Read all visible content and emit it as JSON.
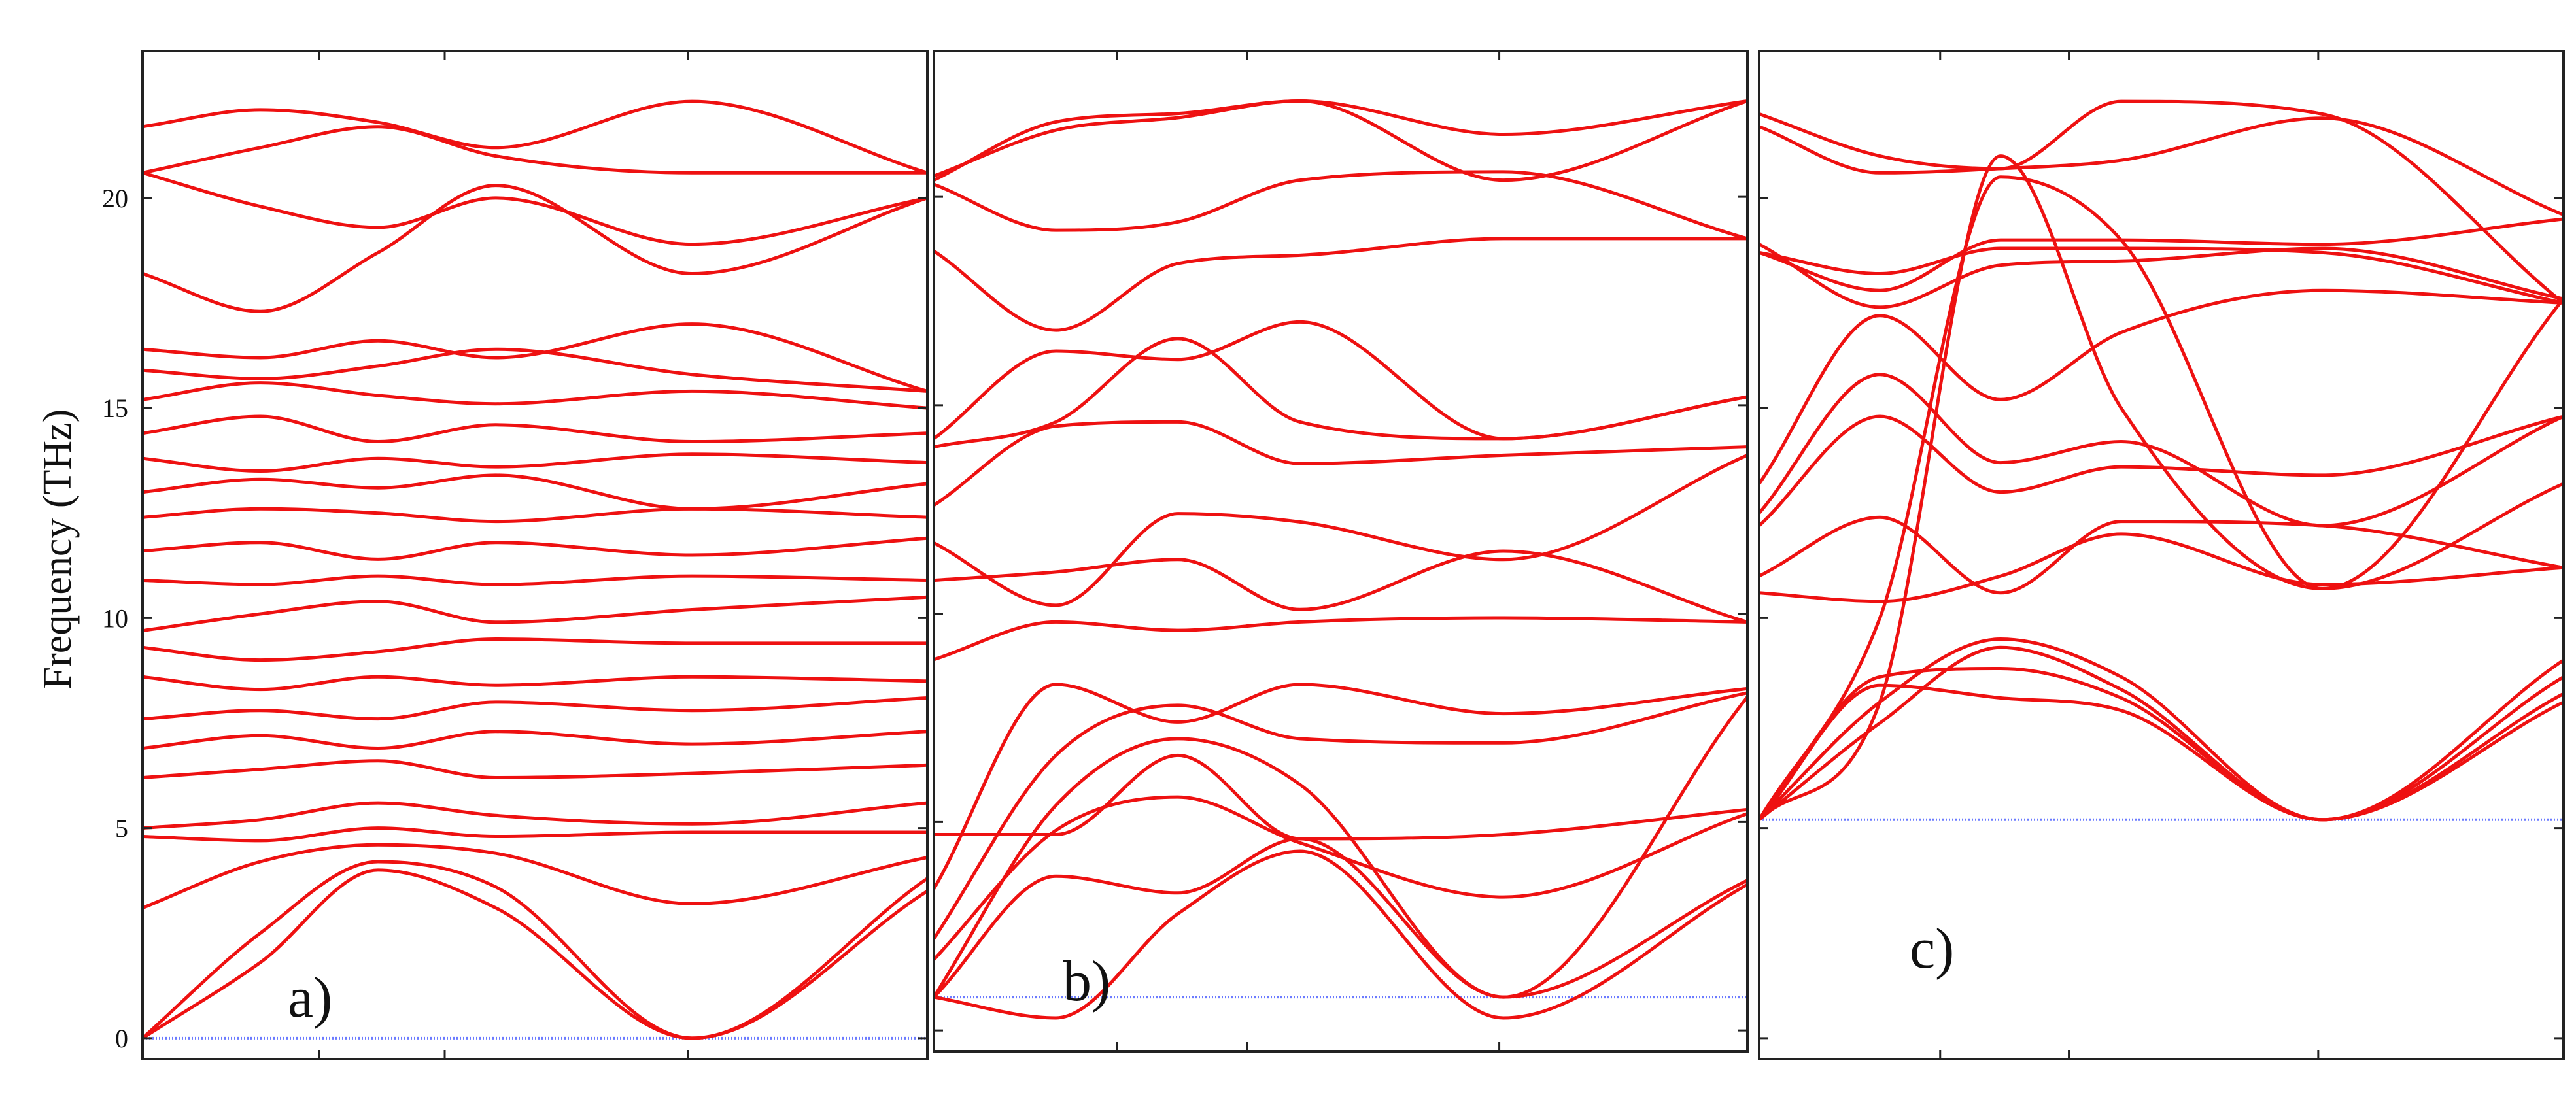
{
  "chart_data": {
    "type": "line",
    "ylabel": "Frequency (THz)",
    "ylim": [
      -0.5,
      23.5
    ],
    "yticks": [
      "0",
      "5",
      "10",
      "15",
      "20"
    ],
    "colors": {
      "bands": "#ee1111",
      "reference_line": "#6b7bff",
      "frame": "#222222"
    },
    "grid": false,
    "legend": "none",
    "panels": [
      {
        "label": "a)",
        "x": [
          0,
          0.15,
          0.3,
          0.45,
          0.7,
          1
        ],
        "reference_line": 0,
        "series": [
          {
            "values": [
              0,
              1.8,
              4.0,
              3.1,
              0,
              3.5
            ]
          },
          {
            "values": [
              0,
              2.5,
              4.2,
              3.6,
              0,
              3.8
            ]
          },
          {
            "values": [
              3.1,
              4.2,
              4.6,
              4.4,
              3.2,
              4.3
            ]
          },
          {
            "values": [
              4.8,
              4.7,
              5.0,
              4.8,
              4.9,
              4.9
            ]
          },
          {
            "values": [
              5.0,
              5.2,
              5.6,
              5.3,
              5.1,
              5.6
            ]
          },
          {
            "values": [
              6.2,
              6.4,
              6.6,
              6.2,
              6.3,
              6.5
            ]
          },
          {
            "values": [
              6.9,
              7.2,
              6.9,
              7.3,
              7.0,
              7.3
            ]
          },
          {
            "values": [
              7.6,
              7.8,
              7.6,
              8.0,
              7.8,
              8.1
            ]
          },
          {
            "values": [
              8.6,
              8.3,
              8.6,
              8.4,
              8.6,
              8.5
            ]
          },
          {
            "values": [
              9.3,
              9.0,
              9.2,
              9.5,
              9.4,
              9.4
            ]
          },
          {
            "values": [
              9.7,
              10.1,
              10.4,
              9.9,
              10.2,
              10.5
            ]
          },
          {
            "values": [
              10.9,
              10.8,
              11.0,
              10.8,
              11.0,
              10.9
            ]
          },
          {
            "values": [
              11.6,
              11.8,
              11.4,
              11.8,
              11.5,
              11.9
            ]
          },
          {
            "values": [
              12.4,
              12.6,
              12.5,
              12.3,
              12.6,
              12.4
            ]
          },
          {
            "values": [
              13.0,
              13.3,
              13.1,
              13.4,
              12.6,
              13.2
            ]
          },
          {
            "values": [
              13.8,
              13.5,
              13.8,
              13.6,
              13.9,
              13.7
            ]
          },
          {
            "values": [
              14.4,
              14.8,
              14.2,
              14.6,
              14.2,
              14.4
            ]
          },
          {
            "values": [
              15.2,
              15.6,
              15.3,
              15.1,
              15.4,
              15.0
            ]
          },
          {
            "values": [
              15.9,
              15.7,
              16.0,
              16.4,
              15.8,
              15.4
            ]
          },
          {
            "values": [
              16.4,
              16.2,
              16.6,
              16.2,
              17.0,
              15.4
            ]
          },
          {
            "values": [
              18.2,
              17.3,
              18.7,
              20.3,
              18.2,
              20.0
            ]
          },
          {
            "values": [
              20.6,
              19.8,
              19.3,
              20.0,
              18.9,
              20.0
            ]
          },
          {
            "values": [
              20.6,
              21.2,
              21.7,
              21.0,
              20.6,
              20.6
            ]
          },
          {
            "values": [
              21.7,
              22.1,
              21.8,
              21.2,
              22.3,
              20.6
            ]
          }
        ]
      },
      {
        "label": "b)",
        "x": [
          0,
          0.15,
          0.3,
          0.45,
          0.7,
          1
        ],
        "reference_line": 0.8,
        "series": [
          {
            "values": [
              0.8,
              0.3,
              2.8,
              4.3,
              0.3,
              3.5
            ]
          },
          {
            "values": [
              0.8,
              3.7,
              3.3,
              4.6,
              0.8,
              3.6
            ]
          },
          {
            "values": [
              1.7,
              4.8,
              5.6,
              4.5,
              3.2,
              5.2
            ]
          },
          {
            "values": [
              4.7,
              4.7,
              6.6,
              4.6,
              4.7,
              5.3
            ]
          },
          {
            "values": [
              0.8,
              5.4,
              7.0,
              5.9,
              0.8,
              8.0
            ]
          },
          {
            "values": [
              2.2,
              6.6,
              7.8,
              7.0,
              6.9,
              8.1
            ]
          },
          {
            "values": [
              3.4,
              8.3,
              7.4,
              8.3,
              7.6,
              8.2
            ]
          },
          {
            "values": [
              8.9,
              9.8,
              9.6,
              9.8,
              9.9,
              9.8
            ]
          },
          {
            "values": [
              10.8,
              11.0,
              11.3,
              10.1,
              11.5,
              9.8
            ]
          },
          {
            "values": [
              11.7,
              10.2,
              12.4,
              12.2,
              11.3,
              13.8
            ]
          },
          {
            "values": [
              12.6,
              14.5,
              14.6,
              13.6,
              13.8,
              14.0
            ]
          },
          {
            "values": [
              14.0,
              14.6,
              16.6,
              14.6,
              14.2,
              15.2
            ]
          },
          {
            "values": [
              14.2,
              16.3,
              16.1,
              17.0,
              14.2,
              15.2
            ]
          },
          {
            "values": [
              18.7,
              16.8,
              18.4,
              18.6,
              19.0,
              19.0
            ]
          },
          {
            "values": [
              20.3,
              19.2,
              19.4,
              20.4,
              20.6,
              19.0
            ]
          },
          {
            "values": [
              20.5,
              21.6,
              21.9,
              22.3,
              20.4,
              22.3
            ]
          },
          {
            "values": [
              20.4,
              21.8,
              22.0,
              22.3,
              21.5,
              22.3
            ]
          }
        ]
      },
      {
        "label": "c)",
        "x": [
          0,
          0.15,
          0.3,
          0.45,
          0.7,
          1
        ],
        "reference_line": 5.2,
        "series": [
          {
            "values": [
              5.2,
              8.4,
              8.1,
              7.8,
              5.2,
              8.0
            ]
          },
          {
            "values": [
              5.2,
              8.6,
              8.8,
              8.1,
              5.2,
              8.2
            ]
          },
          {
            "values": [
              5.2,
              7.5,
              9.3,
              8.3,
              5.2,
              8.6
            ]
          },
          {
            "values": [
              5.2,
              8.0,
              9.5,
              8.6,
              5.2,
              9.0
            ]
          },
          {
            "values": [
              10.6,
              10.4,
              11.0,
              12.0,
              10.8,
              11.2
            ]
          },
          {
            "values": [
              11.0,
              12.4,
              10.6,
              12.3,
              12.2,
              11.2
            ]
          },
          {
            "values": [
              12.2,
              14.8,
              13.0,
              13.6,
              13.4,
              14.8
            ]
          },
          {
            "values": [
              12.5,
              15.8,
              13.7,
              14.2,
              12.2,
              14.8
            ]
          },
          {
            "values": [
              13.2,
              17.2,
              15.2,
              16.8,
              17.8,
              17.5
            ]
          },
          {
            "values": [
              18.7,
              18.2,
              18.8,
              18.8,
              18.7,
              17.5
            ]
          },
          {
            "values": [
              18.9,
              17.4,
              18.4,
              18.5,
              18.8,
              17.6
            ]
          },
          {
            "values": [
              18.7,
              17.8,
              19.0,
              19.0,
              18.9,
              19.5
            ]
          },
          {
            "values": [
              21.7,
              20.6,
              20.7,
              20.9,
              21.9,
              19.6
            ]
          },
          {
            "values": [
              22.0,
              21.0,
              20.7,
              22.3,
              22.0,
              17.5
            ]
          },
          {
            "values": [
              5.2,
              8.0,
              21.0,
              15.0,
              10.7,
              17.6
            ]
          },
          {
            "values": [
              5.2,
              10.0,
              20.5,
              19.0,
              10.7,
              13.2
            ]
          }
        ]
      }
    ]
  }
}
